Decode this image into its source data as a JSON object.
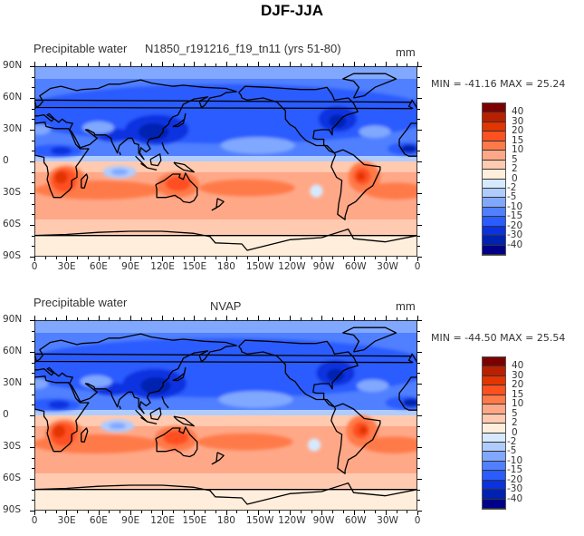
{
  "title": "DJF-JJA",
  "panels": [
    {
      "left_title": "Precipitable water",
      "center_title": "N1850_r191216_f19_tn11 (yrs 51-80)",
      "units": "mm",
      "minmax": "MIN = -41.16 MAX =  25.24"
    },
    {
      "left_title": "Precipitable water",
      "center_title": "NVAP",
      "units": "mm",
      "minmax": "MIN = -44.50 MAX =  25.54"
    }
  ],
  "y_axis_labels": [
    "90N",
    "60N",
    "30N",
    "0",
    "30S",
    "60S",
    "90S"
  ],
  "x_axis_labels": [
    "0",
    "30E",
    "60E",
    "90E",
    "120E",
    "150E",
    "180",
    "150W",
    "120W",
    "90W",
    "60W",
    "30W",
    "0"
  ],
  "colorbar": {
    "levels": [
      "40",
      "30",
      "20",
      "15",
      "10",
      "5",
      "2",
      "0",
      "-2",
      "-5",
      "-10",
      "-15",
      "-20",
      "-30",
      "-40"
    ],
    "colors": [
      "#7d0000",
      "#b82000",
      "#e23500",
      "#ff5020",
      "#ff7a48",
      "#ffa888",
      "#ffcab0",
      "#ffeedc",
      "#d6eaff",
      "#b0ccff",
      "#80a8ff",
      "#5080ff",
      "#2a5cff",
      "#0a32e0",
      "#0022b0",
      "#000088"
    ]
  }
}
